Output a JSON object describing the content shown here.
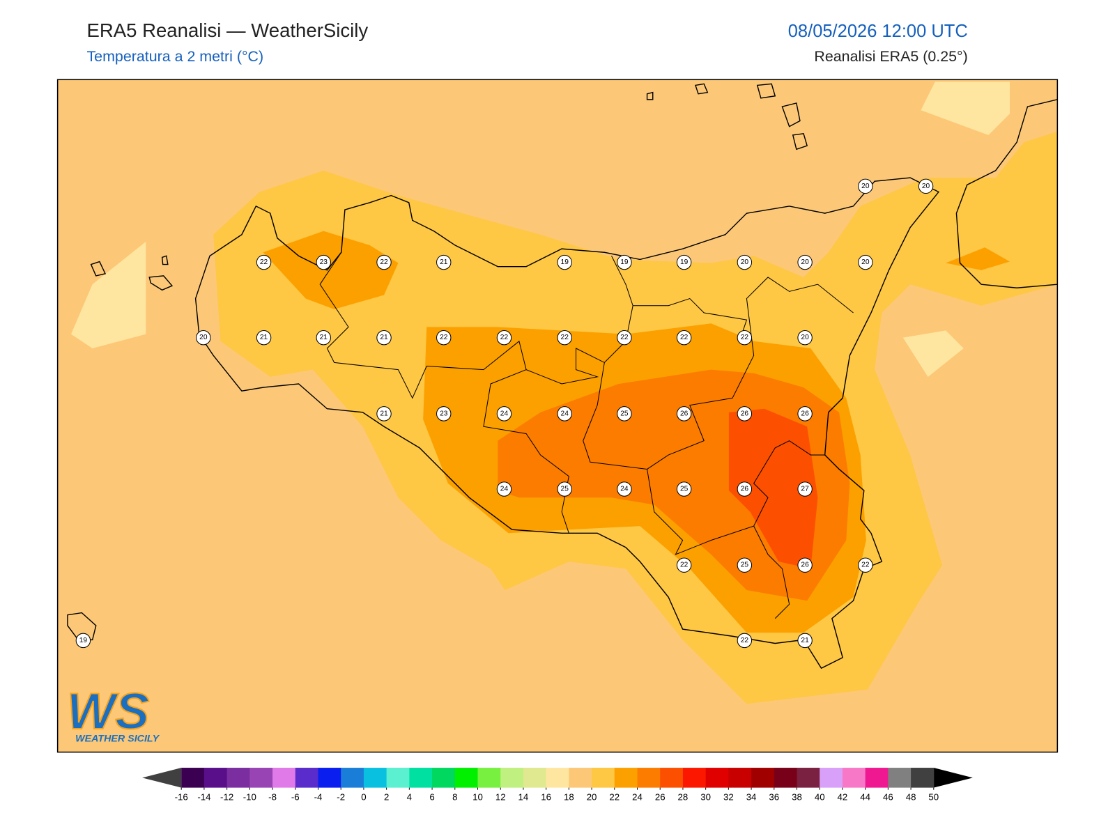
{
  "header": {
    "title": "ERA5 Reanalisi — WeatherSicily",
    "subtitle": "Temperatura a 2 metri (°C)",
    "datetime": "08/05/2026 12:00 UTC",
    "source": "Reanalisi ERA5 (0.25°)"
  },
  "map": {
    "labels": [
      20,
      20,
      22,
      23,
      22,
      21,
      19,
      19,
      19,
      20,
      20,
      20,
      20,
      21,
      21,
      21,
      22,
      22,
      22,
      22,
      22,
      22,
      20,
      21,
      23,
      24,
      24,
      25,
      26,
      26,
      26,
      24,
      25,
      24,
      25,
      26,
      27,
      22,
      25,
      26,
      22,
      22,
      21,
      19
    ]
  },
  "colorbar": {
    "ticks": [
      -16,
      -14,
      -12,
      -10,
      -8,
      -6,
      -4,
      -2,
      0,
      2,
      4,
      6,
      8,
      10,
      12,
      14,
      16,
      18,
      20,
      22,
      24,
      26,
      28,
      30,
      32,
      34,
      36,
      38,
      40,
      42,
      44,
      46,
      48,
      50
    ],
    "colors": [
      "#3b0051",
      "#5a0f8a",
      "#7a2ea0",
      "#9844b4",
      "#e07ae8",
      "#5a2ccc",
      "#0a1ef0",
      "#1a7ed8",
      "#0ac0e0",
      "#5af0d0",
      "#00e0a0",
      "#00d860",
      "#00f000",
      "#78f040",
      "#c0f080",
      "#e0e890",
      "#ffe6a0",
      "#fcc878",
      "#fec744",
      "#fca000",
      "#fc7c00",
      "#fc5000",
      "#fc1800",
      "#e00000",
      "#c80000",
      "#a00000",
      "#780018",
      "#7a2040",
      "#d8a0f8",
      "#f878c8",
      "#f01890",
      "#808080",
      "#404040"
    ],
    "under_color": "#404040",
    "over_color": "#000000"
  },
  "logo": {
    "mark": "WS",
    "text": "WEATHER SICILY"
  }
}
